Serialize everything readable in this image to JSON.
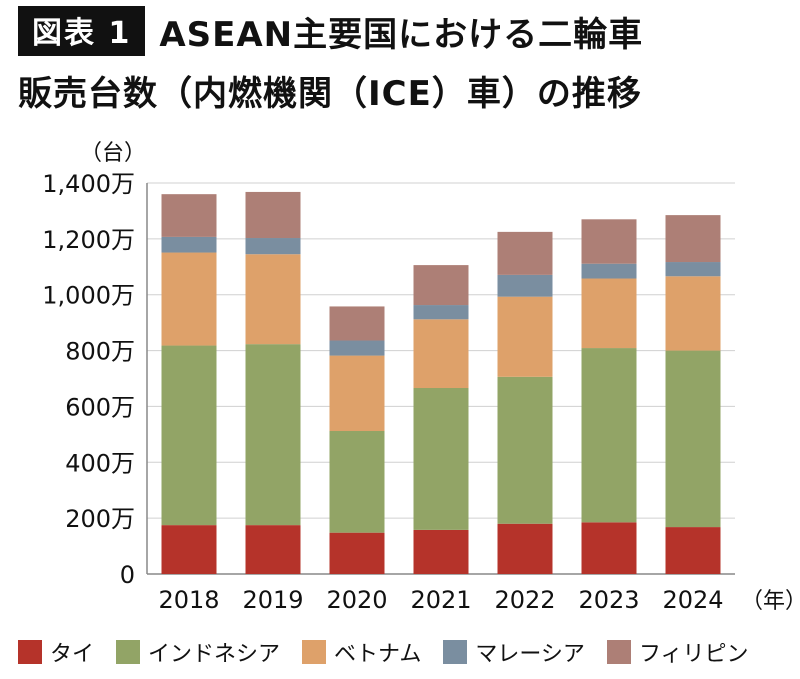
{
  "header": {
    "badge": "図表 1",
    "title_line1": "ASEAN主要国における二輪車",
    "title_line2": "販売台数（内燃機関（ICE）車）の推移"
  },
  "chart_data": {
    "type": "bar",
    "stacked": true,
    "title": "ASEAN主要国における二輪車販売台数（内燃機関（ICE）車）の推移",
    "y_unit": "（台）",
    "x_unit": "（年）",
    "ylim": [
      0,
      14000000
    ],
    "yticks": [
      0,
      2000000,
      4000000,
      6000000,
      8000000,
      10000000,
      12000000,
      14000000
    ],
    "ytick_labels": [
      "0",
      "200万",
      "400万",
      "600万",
      "800万",
      "1,000万",
      "1,200万",
      "1,400万"
    ],
    "grid": true,
    "legend_position": "bottom",
    "categories": [
      "2018",
      "2019",
      "2020",
      "2021",
      "2022",
      "2023",
      "2024"
    ],
    "series": [
      {
        "name": "タイ",
        "color": "#b5332a",
        "values": [
          1750000,
          1750000,
          1480000,
          1580000,
          1800000,
          1850000,
          1680000
        ]
      },
      {
        "name": "インドネシア",
        "color": "#92a466",
        "values": [
          6430000,
          6480000,
          3640000,
          5080000,
          5260000,
          6240000,
          6320000
        ]
      },
      {
        "name": "ベトナム",
        "color": "#dea16a",
        "values": [
          3330000,
          3220000,
          2700000,
          2460000,
          2870000,
          2490000,
          2660000
        ]
      },
      {
        "name": "マレーシア",
        "color": "#7a8ea0",
        "values": [
          560000,
          580000,
          540000,
          510000,
          780000,
          530000,
          510000
        ]
      },
      {
        "name": "フィリピン",
        "color": "#ad7f76",
        "values": [
          1530000,
          1650000,
          1220000,
          1430000,
          1540000,
          1590000,
          1680000
        ]
      }
    ]
  }
}
